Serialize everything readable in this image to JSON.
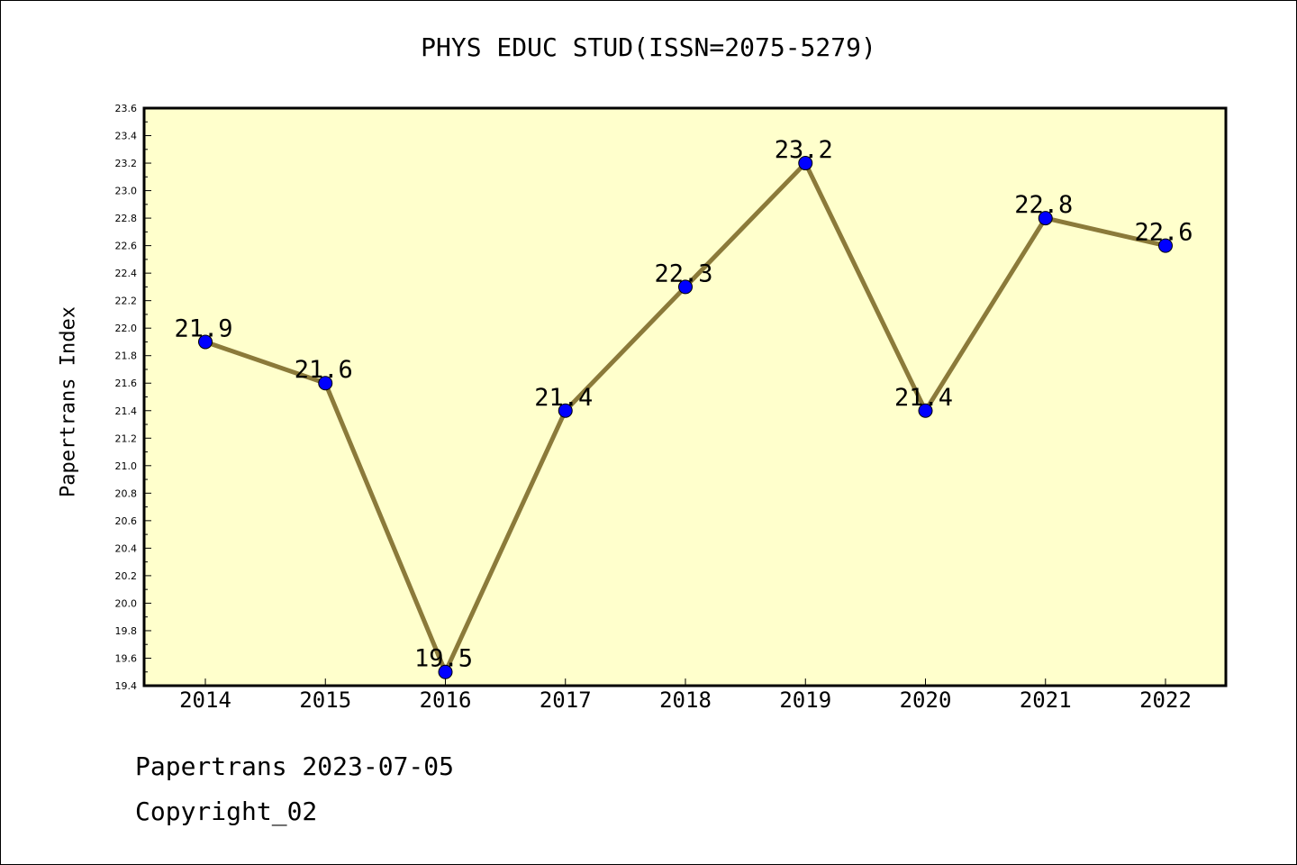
{
  "footer": {
    "line1": "Papertrans 2023-07-05",
    "line2": "Copyright_02"
  },
  "colors": {
    "plot_background": "#ffffcc",
    "line": "#8b7a3a",
    "marker": "#0000ff"
  },
  "chart_data": {
    "type": "line",
    "title": "PHYS EDUC STUD(ISSN=2075-5279)",
    "xlabel": "",
    "ylabel": "Papertrans Index",
    "categories": [
      "2014",
      "2015",
      "2016",
      "2017",
      "2018",
      "2019",
      "2020",
      "2021",
      "2022"
    ],
    "series": [
      {
        "values": [
          21.9,
          21.6,
          19.5,
          21.4,
          22.3,
          23.2,
          21.4,
          22.8,
          22.6
        ]
      }
    ],
    "data_labels": [
      "21.9",
      "21.6",
      "19.5",
      "21.4",
      "22.3",
      "23.2",
      "21.4",
      "22.8",
      "22.6"
    ],
    "ylim": [
      19.4,
      23.6
    ],
    "yticks": [
      "19.4",
      "19.6",
      "19.8",
      "20.0",
      "20.2",
      "20.4",
      "20.6",
      "20.8",
      "21.0",
      "21.2",
      "21.4",
      "21.6",
      "21.8",
      "22.0",
      "22.2",
      "22.4",
      "22.6",
      "22.8",
      "23.0",
      "23.2",
      "23.4",
      "23.6"
    ],
    "grid": false,
    "legend": "none"
  }
}
